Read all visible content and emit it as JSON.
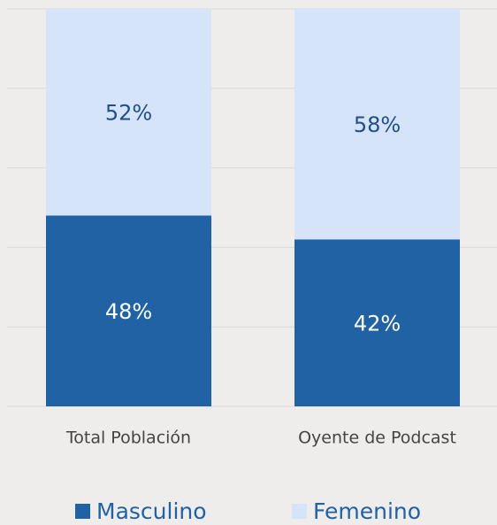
{
  "chart_data": {
    "type": "stacked_bar",
    "categories": [
      "Total Población",
      "Oyente de Podcast"
    ],
    "series": [
      {
        "name": "Masculino",
        "color": "#2062a4",
        "label_color": "#ffffff",
        "values": [
          48,
          42
        ],
        "value_labels": [
          "48%",
          "42%"
        ]
      },
      {
        "name": "Femenino",
        "color": "#d6e4fa",
        "label_color": "#1f4e8c",
        "values": [
          52,
          58
        ],
        "value_labels": [
          "52%",
          "58%"
        ]
      }
    ],
    "ylim": [
      0,
      100
    ],
    "yticks": [
      0,
      20,
      40,
      60,
      80,
      100
    ],
    "grid": true,
    "legend": "bottom"
  }
}
